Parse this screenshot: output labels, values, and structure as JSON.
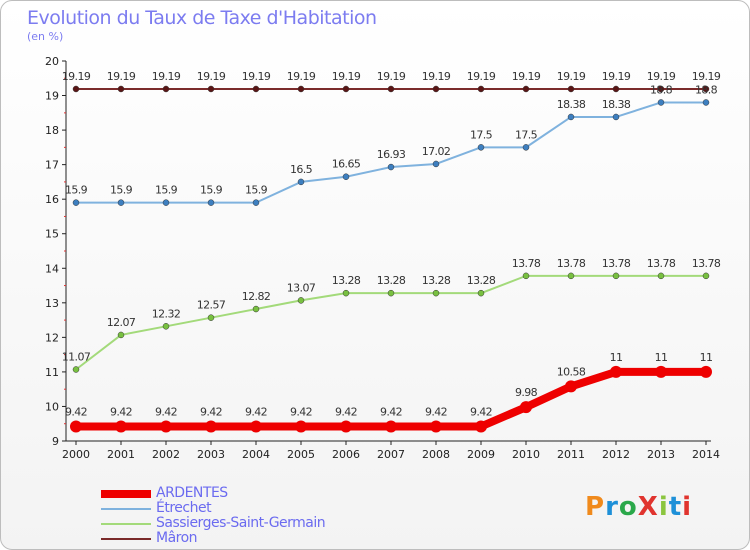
{
  "title": "Evolution du Taux de Taxe d'Habitation",
  "subtitle": "(en %)",
  "logo": {
    "text": "ProXiti",
    "colors": [
      "#f08a1c",
      "#1e90d8",
      "#2aa84a",
      "#e0342e",
      "#8bc53f",
      "#1e90d8",
      "#e0342e"
    ]
  },
  "chart_data": {
    "type": "line",
    "categories": [
      "2000",
      "2001",
      "2002",
      "2003",
      "2004",
      "2005",
      "2006",
      "2007",
      "2008",
      "2009",
      "2010",
      "2011",
      "2012",
      "2013",
      "2014"
    ],
    "ylim": [
      9,
      20
    ],
    "yticks": [
      "9",
      "10",
      "11",
      "12",
      "13",
      "14",
      "15",
      "16",
      "17",
      "18",
      "19",
      "20"
    ],
    "grid": false,
    "legend_placement": "bottom-left",
    "series": [
      {
        "name": "Mâron",
        "color": "#7a2a2a",
        "marker": "#5a1515",
        "width": 2,
        "values": [
          19.19,
          19.19,
          19.19,
          19.19,
          19.19,
          19.19,
          19.19,
          19.19,
          19.19,
          19.19,
          19.19,
          19.19,
          19.19,
          19.19,
          19.19
        ],
        "labels": [
          "19.19",
          "19.19",
          "19.19",
          "19.19",
          "19.19",
          "19.19",
          "19.19",
          "19.19",
          "19.19",
          "19.19",
          "19.19",
          "19.19",
          "19.19",
          "19.19",
          "19.19"
        ]
      },
      {
        "name": "Étrechet",
        "color": "#7fb2de",
        "marker": "#3d7fc0",
        "width": 2,
        "values": [
          15.9,
          15.9,
          15.9,
          15.9,
          15.9,
          16.5,
          16.65,
          16.93,
          17.02,
          17.5,
          17.5,
          18.38,
          18.38,
          18.8,
          18.8
        ],
        "labels": [
          "15.9",
          "15.9",
          "15.9",
          "15.9",
          "15.9",
          "16.5",
          "16.65",
          "16.93",
          "17.02",
          "17.5",
          "17.5",
          "18.38",
          "18.38",
          "18.8",
          "18.8"
        ]
      },
      {
        "name": "Sassierges-Saint-Germain",
        "color": "#a3da7a",
        "marker": "#78c040",
        "width": 2,
        "values": [
          11.07,
          12.07,
          12.32,
          12.57,
          12.82,
          13.07,
          13.28,
          13.28,
          13.28,
          13.28,
          13.78,
          13.78,
          13.78,
          13.78,
          13.78
        ],
        "labels": [
          "11.07",
          "12.07",
          "12.32",
          "12.57",
          "12.82",
          "13.07",
          "13.28",
          "13.28",
          "13.28",
          "13.28",
          "13.78",
          "13.78",
          "13.78",
          "13.78",
          "13.78"
        ]
      },
      {
        "name": "ARDENTES",
        "color": "#ee0000",
        "marker": "#ee0000",
        "width": 8,
        "values": [
          9.42,
          9.42,
          9.42,
          9.42,
          9.42,
          9.42,
          9.42,
          9.42,
          9.42,
          9.42,
          9.98,
          10.58,
          11,
          11,
          11
        ],
        "labels": [
          "9.42",
          "9.42",
          "9.42",
          "9.42",
          "9.42",
          "9.42",
          "9.42",
          "9.42",
          "9.42",
          "9.42",
          "9.98",
          "10.58",
          "11",
          "11",
          "11"
        ]
      }
    ]
  },
  "legend": [
    {
      "label": "ARDENTES",
      "color": "#ee0000",
      "thickness": 8
    },
    {
      "label": "Étrechet",
      "color": "#7fb2de",
      "thickness": 2
    },
    {
      "label": "Sassierges-Saint-Germain",
      "color": "#a3da7a",
      "thickness": 2
    },
    {
      "label": "Mâron",
      "color": "#7a2a2a",
      "thickness": 2
    }
  ]
}
